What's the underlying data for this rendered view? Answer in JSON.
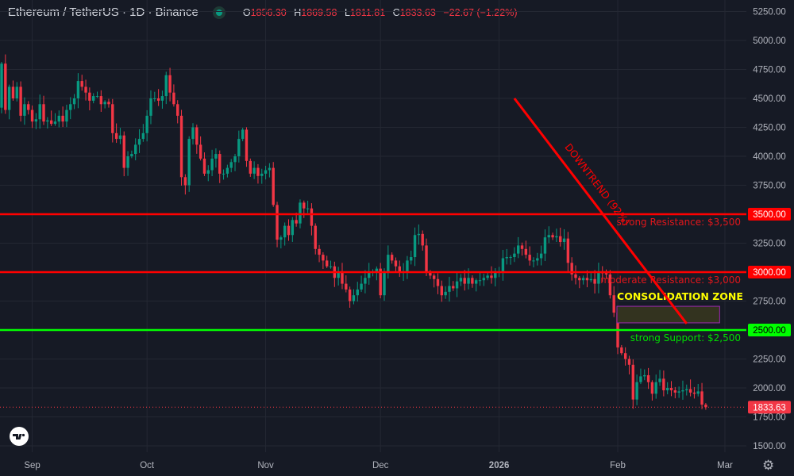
{
  "header": {
    "symbol": "Ethereum / TetherUS · 1D · Binance",
    "market_status_color": "#089981",
    "ohlc": {
      "o_label": "O",
      "o": "1856.30",
      "h_label": "H",
      "h": "1869.58",
      "l_label": "L",
      "l": "1811.81",
      "c_label": "C",
      "c": "1833.63",
      "change": "−22.67 (−1.22%)"
    }
  },
  "colors": {
    "background": "#161a25",
    "grid": "#242833",
    "up": "#089981",
    "down": "#f23645",
    "resistance": "#ff0000",
    "support": "#00ff00",
    "zone_border": "#9c27b0",
    "zone_fill": "#33331f",
    "zone_label": "#ffff00"
  },
  "chart_data": {
    "type": "candlestick",
    "title": "",
    "xlabel": "",
    "ylabel": "",
    "ylim": [
      1500,
      5250
    ],
    "grid": true,
    "y_ticks": [
      "5250.00",
      "5000.00",
      "4750.00",
      "4500.00",
      "4250.00",
      "4000.00",
      "3750.00",
      "3500.00",
      "3250.00",
      "3000.00",
      "2750.00",
      "2500.00",
      "2250.00",
      "2000.00",
      "1750.00",
      "1500.00"
    ],
    "x_ticks": [
      {
        "label": "Sep",
        "date": "2025-09-01"
      },
      {
        "label": "Oct",
        "date": "2025-10-01"
      },
      {
        "label": "Nov",
        "date": "2025-11-01"
      },
      {
        "label": "Dec",
        "date": "2025-12-01"
      },
      {
        "label": "2026",
        "date": "2026-01-01",
        "bold": true
      },
      {
        "label": "Feb",
        "date": "2026-02-01"
      },
      {
        "label": "Mar",
        "date": "2026-03-01"
      }
    ],
    "period": "2025-08-24 to 2026-02-24",
    "closes": [
      4800,
      4400,
      4600,
      4500,
      4600,
      4350,
      4450,
      4400,
      4300,
      4320,
      4450,
      4300,
      4310,
      4280,
      4300,
      4350,
      4300,
      4400,
      4450,
      4500,
      4650,
      4600,
      4550,
      4480,
      4520,
      4520,
      4450,
      4470,
      4450,
      4200,
      4150,
      4180,
      3900,
      4000,
      4020,
      4100,
      4150,
      4200,
      4350,
      4500,
      4500,
      4480,
      4520,
      4700,
      4550,
      4450,
      4350,
      3820,
      3750,
      4150,
      4250,
      4100,
      3980,
      3850,
      3880,
      3980,
      4020,
      3850,
      3850,
      3900,
      3950,
      4000,
      4150,
      4230,
      3960,
      3850,
      3900,
      3830,
      3850,
      3880,
      3900,
      3580,
      3280,
      3300,
      3400,
      3320,
      3450,
      3420,
      3600,
      3550,
      3550,
      3400,
      3200,
      3150,
      3100,
      3050,
      3050,
      2950,
      3000,
      2900,
      2850,
      2750,
      2800,
      2850,
      2900,
      2950,
      3000,
      3000,
      3030,
      2800,
      3000,
      3150,
      3100,
      3050,
      3000,
      3000,
      3100,
      3130,
      3320,
      3330,
      3230,
      3000,
      2970,
      2940,
      2880,
      2800,
      2830,
      2880,
      2860,
      2920,
      2950,
      2900,
      2950,
      2900,
      2930,
      2930,
      2950,
      2970,
      2950,
      3000,
      3000,
      3120,
      3130,
      3130,
      3160,
      3230,
      3200,
      3150,
      3100,
      3100,
      3120,
      3160,
      3300,
      3320,
      3300,
      3310,
      3260,
      3290,
      3080,
      2980,
      2950,
      2930,
      2950,
      2930,
      2940,
      2900,
      3000,
      2990,
      2980,
      2800,
      2650,
      2350,
      2300,
      2250,
      2200,
      1900,
      2050,
      2100,
      2110,
      2050,
      1950,
      2050,
      2080,
      1980,
      2000,
      1980,
      1960,
      1970,
      1980,
      1990,
      1960,
      1950,
      1970,
      1856.3,
      1833.63
    ],
    "last_candle": {
      "open": 1856.3,
      "high": 1869.58,
      "low": 1811.81,
      "close": 1833.63
    },
    "current_price_label": "1833.63",
    "levels": [
      {
        "price": 3500,
        "axis_label": "3500.00",
        "text": "strong Resistance: $3,500",
        "kind": "resistance"
      },
      {
        "price": 3000,
        "axis_label": "3000.00",
        "text": "moderate Resistance: $3,000",
        "kind": "resistance"
      },
      {
        "price": 2500,
        "axis_label": "2500.00",
        "text": "strong Support: $2,500",
        "kind": "support"
      }
    ],
    "trendline": {
      "label": "DOWNTREND (92%)",
      "start": {
        "date": "2026-01-05",
        "price": 4500
      },
      "end": {
        "date": "2026-02-19",
        "price": 2555
      }
    },
    "zone": {
      "label": "CONSOLIDATION ZONE",
      "from_date": "2026-02-01",
      "to_date": "2026-02-27",
      "price_top": 2705,
      "price_bottom": 2562
    }
  },
  "footer": {
    "settings_icon": "gear-icon",
    "logo": "TV"
  }
}
